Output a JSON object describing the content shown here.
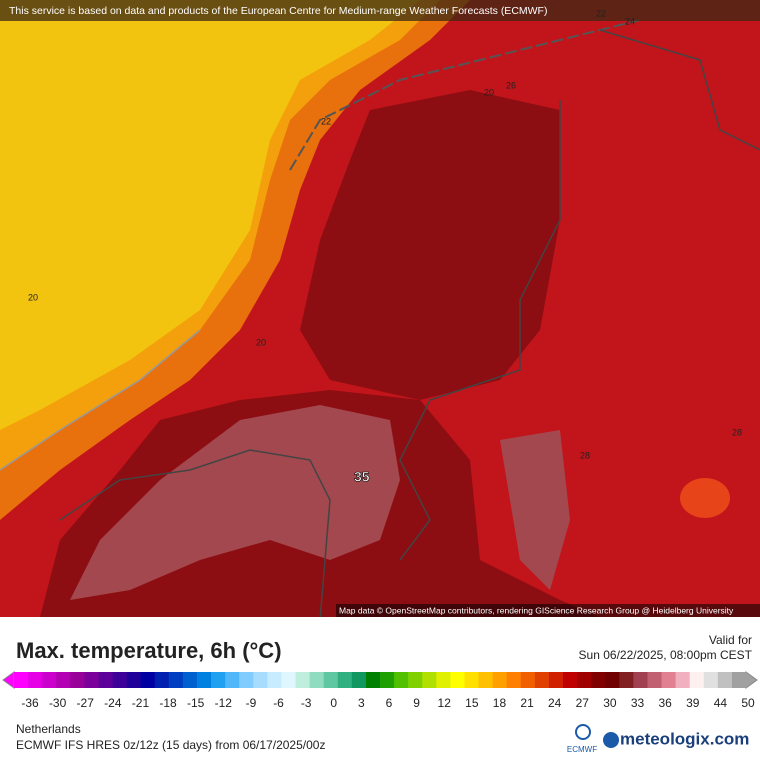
{
  "banner": "This service is based on data and products of the European Centre for Medium-range Weather Forecasts (ECMWF)",
  "map_labels": [
    "22",
    "24",
    "20",
    "26",
    "22",
    "20",
    "20",
    "35",
    "28",
    "28"
  ],
  "attribution": "Map data © OpenStreetMap contributors, rendering GIScience Research Group @ Heidelberg University",
  "title": "Max. temperature, 6h (°C)",
  "valid_label": "Valid for",
  "valid_time": "Sun 06/22/2025, 08:00pm CEST",
  "legend": {
    "ticks": [
      "-36",
      "-30",
      "-27",
      "-24",
      "-21",
      "-18",
      "-15",
      "-12",
      "-9",
      "-6",
      "-3",
      "0",
      "3",
      "6",
      "9",
      "12",
      "15",
      "18",
      "21",
      "24",
      "27",
      "30",
      "33",
      "36",
      "39",
      "44",
      "50"
    ],
    "colors": [
      "#ff00ff",
      "#e600e6",
      "#cc00cc",
      "#b300b3",
      "#990099",
      "#7a0099",
      "#5c0099",
      "#3d0099",
      "#1f0099",
      "#0000a0",
      "#0020b0",
      "#0040c0",
      "#0060d0",
      "#0080e0",
      "#20a0f0",
      "#50b8f8",
      "#80ccff",
      "#a8dcff",
      "#c8ecff",
      "#e0f6ff",
      "#c0eedd",
      "#90dcc0",
      "#60c8a0",
      "#30b080",
      "#109860",
      "#008000",
      "#20a000",
      "#50c000",
      "#80d000",
      "#b0e000",
      "#e0f000",
      "#ffff00",
      "#ffe000",
      "#ffc000",
      "#ffa000",
      "#ff8000",
      "#f06000",
      "#e04000",
      "#d02000",
      "#c00000",
      "#a00000",
      "#800000",
      "#700000",
      "#802020",
      "#a04050",
      "#c06070",
      "#e08090",
      "#f0b0c0",
      "#fff0f0",
      "#e0e0e0",
      "#c0c0c0",
      "#a0a0a0"
    ]
  },
  "region": "Netherlands",
  "model": "ECMWF IFS HRES 0z/12z (15 days) from  06/17/2025/00z",
  "logo_ecmwf": "ECMWF",
  "logo_site": "meteologix.com"
}
